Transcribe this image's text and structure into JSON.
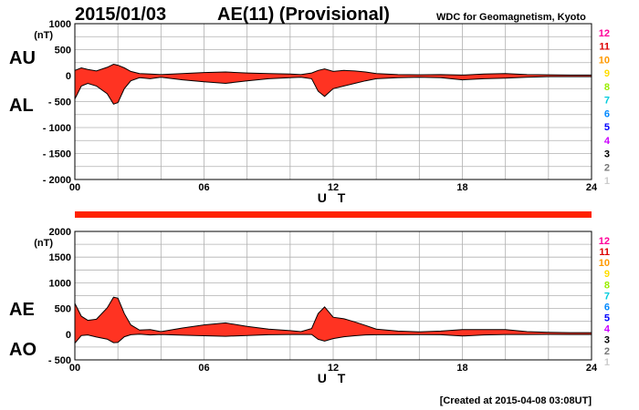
{
  "header": {
    "date": "2015/01/03",
    "title": "AE(11) (Provisional)",
    "source": "WDC for Geomagnetism, Kyoto"
  },
  "footer": {
    "created": "[Created at 2015-04-08 03:08UT]"
  },
  "colors": {
    "fill": "#ff3322",
    "band": "#ff2200",
    "grid": "#b0b0b0",
    "line": "#000000"
  },
  "station_scale": {
    "numbers": [
      "12",
      "11",
      "10",
      "9",
      "8",
      "7",
      "6",
      "5",
      "4",
      "3",
      "2",
      "1"
    ],
    "colors": [
      "#ff0099",
      "#dd0000",
      "#ff9900",
      "#ffdd00",
      "#99ee00",
      "#00ccdd",
      "#0088ff",
      "#0000ff",
      "#cc00ff",
      "#000000",
      "#777777",
      "#cccccc"
    ]
  },
  "chart_data": [
    {
      "type": "area",
      "unit": "(nT)",
      "labels_top": "AU",
      "labels_bottom": "AL",
      "xlabel": "U T",
      "xticks": [
        "00",
        "06",
        "12",
        "18",
        "24"
      ],
      "xlim": [
        0,
        24
      ],
      "ylim": [
        -2000,
        1000
      ],
      "yticks": [
        1000,
        500,
        0,
        -500,
        -1000,
        -1500,
        -2000
      ],
      "ytick_labels": [
        "1000",
        "500",
        "0",
        "- 500",
        "- 1000",
        "- 1500",
        "- 2000"
      ],
      "grid": true,
      "series": [
        {
          "key": "AU",
          "x": [
            0,
            0.3,
            0.6,
            1.0,
            1.5,
            1.8,
            2.0,
            2.3,
            2.6,
            3.0,
            3.5,
            4.0,
            5.0,
            6.0,
            7.0,
            8.0,
            9.0,
            10.0,
            10.5,
            11.0,
            11.3,
            11.6,
            12.0,
            12.5,
            13.0,
            13.5,
            14.0,
            15.0,
            16.0,
            17.0,
            18.0,
            19.0,
            20.0,
            21.0,
            22.0,
            23.0,
            24.0
          ],
          "values": [
            100,
            150,
            120,
            90,
            160,
            220,
            200,
            150,
            80,
            40,
            30,
            20,
            40,
            60,
            70,
            50,
            40,
            30,
            20,
            50,
            100,
            130,
            80,
            100,
            90,
            70,
            40,
            20,
            15,
            20,
            10,
            30,
            40,
            20,
            15,
            10,
            10
          ]
        },
        {
          "key": "AL",
          "x": [
            0,
            0.3,
            0.6,
            1.0,
            1.5,
            1.8,
            2.0,
            2.3,
            2.6,
            3.0,
            3.5,
            4.0,
            5.0,
            6.0,
            7.0,
            8.0,
            9.0,
            10.0,
            10.5,
            11.0,
            11.3,
            11.6,
            12.0,
            12.5,
            13.0,
            13.5,
            14.0,
            15.0,
            16.0,
            17.0,
            18.0,
            19.0,
            20.0,
            21.0,
            22.0,
            23.0,
            24.0
          ],
          "values": [
            -450,
            -200,
            -150,
            -200,
            -350,
            -550,
            -520,
            -250,
            -100,
            -40,
            -60,
            -30,
            -80,
            -120,
            -150,
            -100,
            -60,
            -40,
            -30,
            -60,
            -300,
            -400,
            -250,
            -200,
            -150,
            -100,
            -60,
            -40,
            -30,
            -40,
            -80,
            -60,
            -50,
            -30,
            -20,
            -20,
            -20
          ]
        }
      ]
    },
    {
      "type": "area",
      "unit": "(nT)",
      "labels_top": "AE",
      "labels_bottom": "AO",
      "xlabel": "U T",
      "xticks": [
        "00",
        "06",
        "12",
        "18",
        "24"
      ],
      "xlim": [
        0,
        24
      ],
      "ylim": [
        -500,
        2000
      ],
      "yticks": [
        2000,
        1500,
        1000,
        500,
        0,
        -500
      ],
      "ytick_labels": [
        "2000",
        "1500",
        "1000",
        "500",
        "0",
        "- 500"
      ],
      "grid": true,
      "series": [
        {
          "key": "AE",
          "x": [
            0,
            0.3,
            0.6,
            1.0,
            1.5,
            1.8,
            2.0,
            2.3,
            2.6,
            3.0,
            3.5,
            4.0,
            5.0,
            6.0,
            7.0,
            8.0,
            9.0,
            10.0,
            10.5,
            11.0,
            11.3,
            11.6,
            12.0,
            12.5,
            13.0,
            13.5,
            14.0,
            15.0,
            16.0,
            17.0,
            18.0,
            19.0,
            20.0,
            21.0,
            22.0,
            23.0,
            24.0
          ],
          "values": [
            600,
            350,
            270,
            290,
            510,
            720,
            700,
            400,
            180,
            80,
            90,
            50,
            120,
            180,
            220,
            150,
            100,
            70,
            50,
            110,
            400,
            530,
            330,
            300,
            240,
            170,
            100,
            60,
            45,
            60,
            90,
            90,
            90,
            50,
            35,
            30,
            30
          ]
        },
        {
          "key": "AO",
          "x": [
            0,
            0.3,
            0.6,
            1.0,
            1.5,
            1.8,
            2.0,
            2.3,
            2.6,
            3.0,
            3.5,
            4.0,
            5.0,
            6.0,
            7.0,
            8.0,
            9.0,
            10.0,
            10.5,
            11.0,
            11.3,
            11.6,
            12.0,
            12.5,
            13.0,
            13.5,
            14.0,
            15.0,
            16.0,
            17.0,
            18.0,
            19.0,
            20.0,
            21.0,
            22.0,
            23.0,
            24.0
          ],
          "values": [
            -175,
            -25,
            -15,
            -55,
            -95,
            -165,
            -160,
            -50,
            -10,
            0,
            -15,
            -5,
            -20,
            -30,
            -40,
            -25,
            -10,
            -5,
            -5,
            -5,
            -100,
            -135,
            -85,
            -50,
            -30,
            -15,
            -10,
            -10,
            -8,
            -10,
            -35,
            -15,
            -5,
            -5,
            -3,
            -5,
            -5
          ]
        }
      ]
    }
  ]
}
